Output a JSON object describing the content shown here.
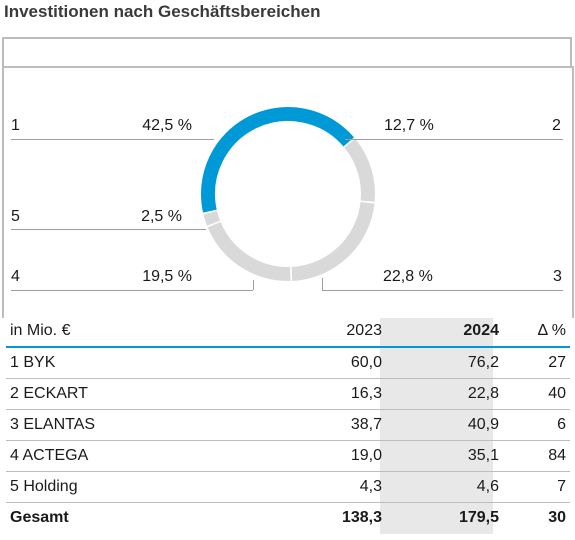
{
  "title": "Investitionen nach Geschäftsbereichen",
  "colors": {
    "highlight": "#0099d8",
    "segment": "#d9d9d9",
    "rule": "#bdbdbd"
  },
  "chart_data": {
    "type": "pie",
    "variant": "donut",
    "slices": [
      {
        "id": "1",
        "value": 42.5,
        "label": "42,5 %",
        "color": "#0099d8"
      },
      {
        "id": "2",
        "value": 12.7,
        "label": "12,7 %",
        "color": "#d9d9d9"
      },
      {
        "id": "3",
        "value": 22.8,
        "label": "22,8 %",
        "color": "#d9d9d9"
      },
      {
        "id": "4",
        "value": 19.5,
        "label": "19,5 %",
        "color": "#d9d9d9"
      },
      {
        "id": "5",
        "value": 2.5,
        "label": "2,5 %",
        "color": "#d9d9d9"
      }
    ]
  },
  "table": {
    "header": {
      "unit": "in Mio. €",
      "y2023": "2023",
      "y2024": "2024",
      "delta": "Δ %"
    },
    "rows": [
      {
        "name": "1 BYK",
        "y2023": "60,0",
        "y2024": "76,2",
        "delta": "27"
      },
      {
        "name": "2 ECKART",
        "y2023": "16,3",
        "y2024": "22,8",
        "delta": "40"
      },
      {
        "name": "3 ELANTAS",
        "y2023": "38,7",
        "y2024": "40,9",
        "delta": "6"
      },
      {
        "name": "4 ACTEGA",
        "y2023": "19,0",
        "y2024": "35,1",
        "delta": "84"
      },
      {
        "name": "5 Holding",
        "y2023": "4,3",
        "y2024": "4,6",
        "delta": "7"
      }
    ],
    "total": {
      "name": "Gesamt",
      "y2023": "138,3",
      "y2024": "179,5",
      "delta": "30"
    }
  }
}
